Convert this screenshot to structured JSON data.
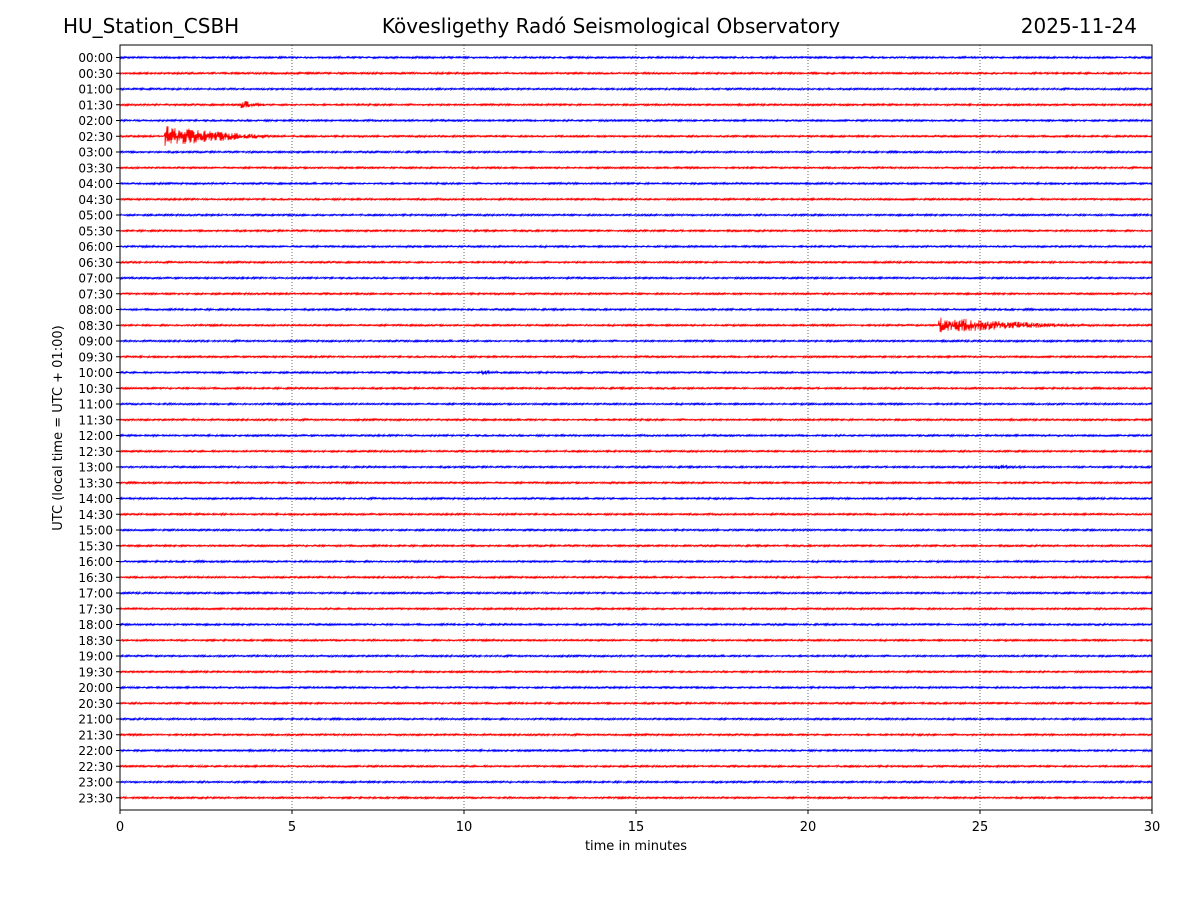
{
  "header": {
    "station": "HU_Station_CSBH",
    "title": "Kövesligethy Radó Seismological Observatory",
    "date": "2025-11-24"
  },
  "chart_data": {
    "type": "line",
    "title": "Kövesligethy Radó Seismological Observatory",
    "xlabel": "time in minutes",
    "ylabel": "UTC (local time = UTC + 01:00)",
    "xlim": [
      0,
      30
    ],
    "x_ticks": [
      0,
      5,
      10,
      15,
      20,
      25,
      30
    ],
    "grid": "vertical dotted",
    "row_labels": [
      "00:00",
      "00:30",
      "01:00",
      "01:30",
      "02:00",
      "02:30",
      "03:00",
      "03:30",
      "04:00",
      "04:30",
      "05:00",
      "05:30",
      "06:00",
      "06:30",
      "07:00",
      "07:30",
      "08:00",
      "08:30",
      "09:00",
      "09:30",
      "10:00",
      "10:30",
      "11:00",
      "11:30",
      "12:00",
      "12:30",
      "13:00",
      "13:30",
      "14:00",
      "14:30",
      "15:00",
      "15:30",
      "16:00",
      "16:30",
      "17:00",
      "17:30",
      "18:00",
      "18:30",
      "19:00",
      "19:30",
      "20:00",
      "20:30",
      "21:00",
      "21:30",
      "22:00",
      "22:30",
      "23:00",
      "23:30"
    ],
    "row_colors": [
      "#0000ff",
      "#ff0000"
    ],
    "events": [
      {
        "row": "01:30",
        "start_min": 3.5,
        "end_min": 4.3,
        "amplitude": 0.25
      },
      {
        "row": "02:30",
        "start_min": 1.3,
        "end_min": 5.0,
        "amplitude": 0.6
      },
      {
        "row": "08:30",
        "start_min": 23.8,
        "end_min": 28.5,
        "amplitude": 0.45
      },
      {
        "row": "10:00",
        "start_min": 10.5,
        "end_min": 11.1,
        "amplitude": 0.15
      },
      {
        "row": "13:00",
        "start_min": 25.3,
        "end_min": 26.5,
        "amplitude": 0.1
      }
    ]
  }
}
